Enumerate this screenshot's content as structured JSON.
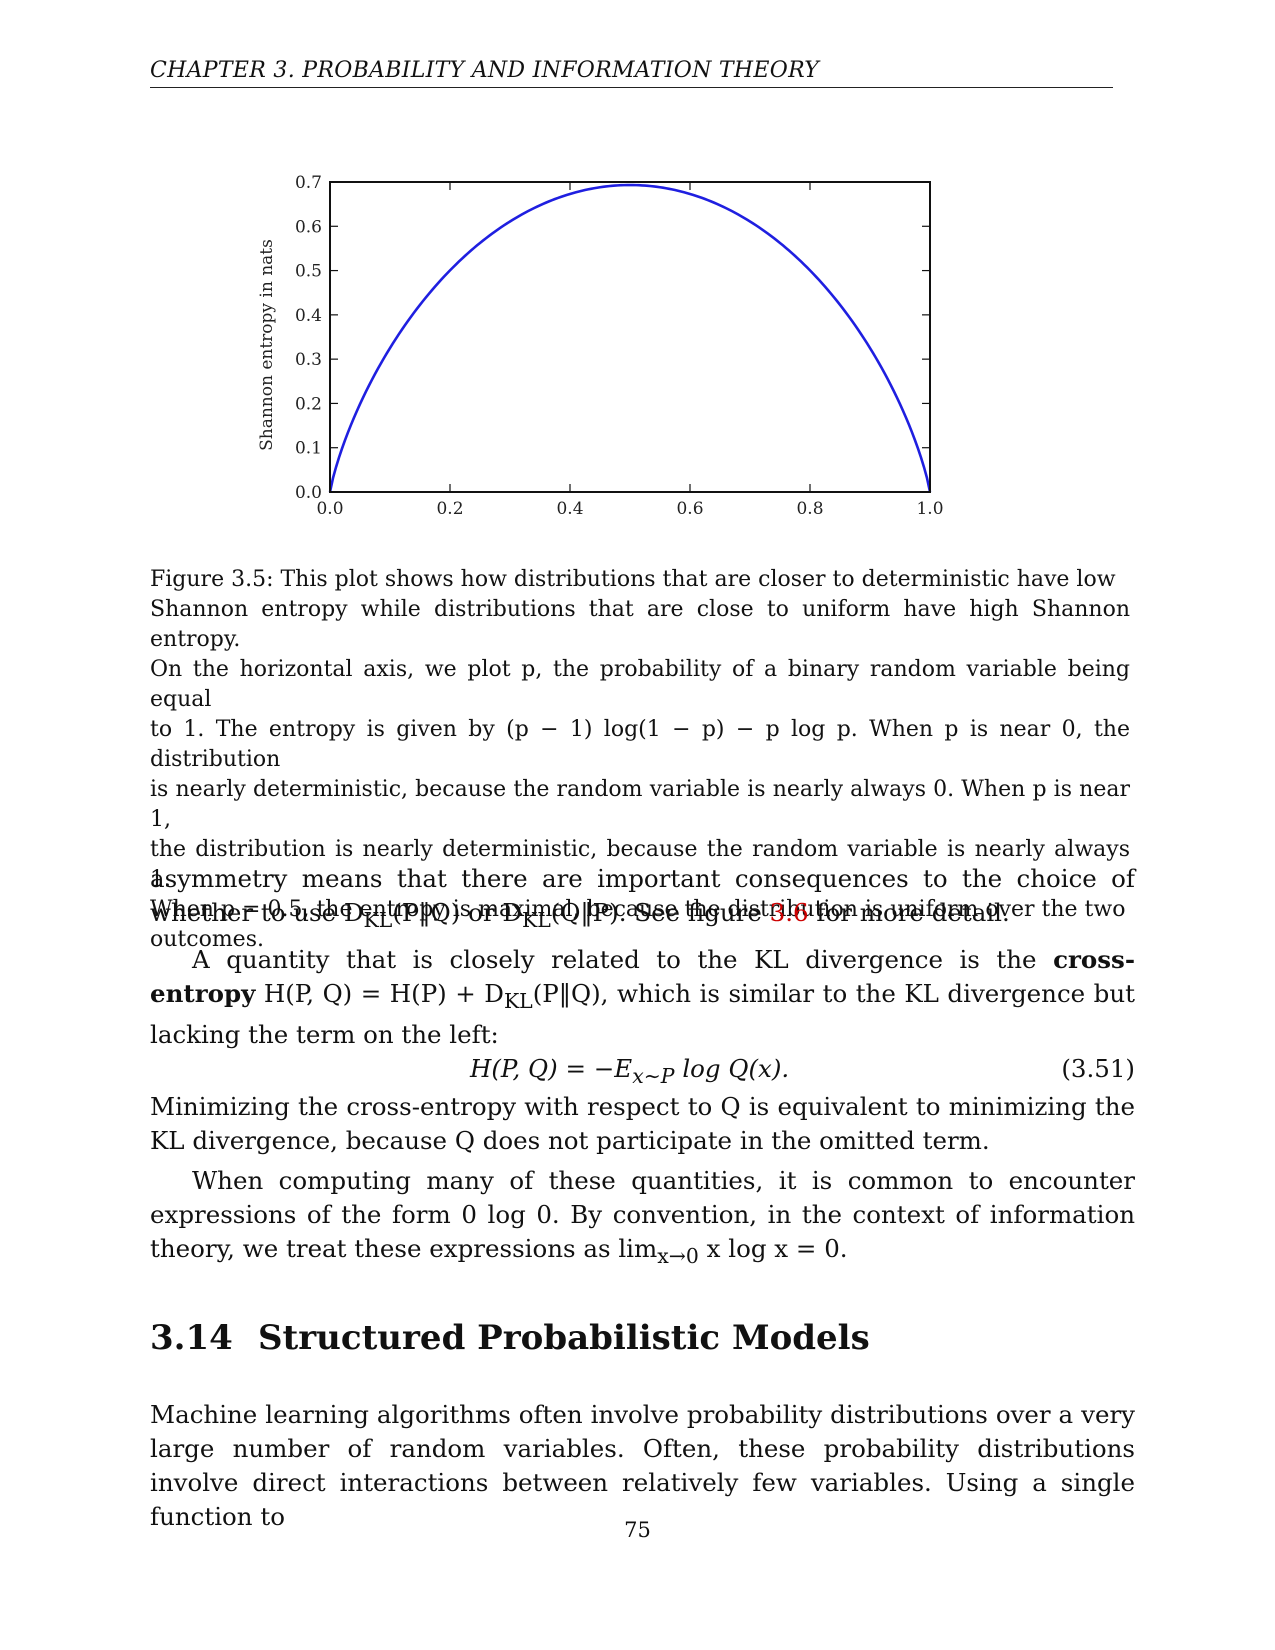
{
  "header": {
    "running_title": "CHAPTER 3.  PROBABILITY AND INFORMATION THEORY"
  },
  "chart_data": {
    "type": "line",
    "title": "",
    "xlabel": "",
    "ylabel": "Shannon entropy in nats",
    "xlim": [
      0.0,
      1.0
    ],
    "ylim": [
      0.0,
      0.7
    ],
    "x_ticks": [
      "0.0",
      "0.2",
      "0.4",
      "0.6",
      "0.8",
      "1.0"
    ],
    "y_ticks": [
      "0.0",
      "0.1",
      "0.2",
      "0.3",
      "0.4",
      "0.5",
      "0.6",
      "0.7"
    ],
    "grid": false,
    "series": [
      {
        "color": "#1f1fe0",
        "x": [
          0.0,
          0.02,
          0.05,
          0.1,
          0.15,
          0.2,
          0.25,
          0.3,
          0.35,
          0.4,
          0.45,
          0.5,
          0.55,
          0.6,
          0.65,
          0.7,
          0.75,
          0.8,
          0.85,
          0.9,
          0.95,
          0.98,
          1.0
        ],
        "y": [
          0.0,
          0.098,
          0.199,
          0.325,
          0.423,
          0.5,
          0.562,
          0.611,
          0.647,
          0.673,
          0.688,
          0.693,
          0.688,
          0.673,
          0.647,
          0.611,
          0.562,
          0.5,
          0.423,
          0.325,
          0.199,
          0.098,
          0.0
        ]
      }
    ]
  },
  "caption": {
    "l1": "Figure 3.5: This plot shows how distributions that are closer to deterministic have low",
    "l2": "Shannon entropy while distributions that are close to uniform have high Shannon entropy.",
    "l3": "On the horizontal axis, we plot p, the probability of a binary random variable being equal",
    "l4": "to 1. The entropy is given by (p − 1) log(1 − p) − p log p. When p is near 0, the distribution",
    "l5": "is nearly deterministic, because the random variable is nearly always 0. When p is near 1,",
    "l6": "the distribution is nearly deterministic, because the random variable is nearly always 1.",
    "l7": "When p = 0.5, the entropy is maximal, because the distribution is uniform over the two",
    "l8": "outcomes."
  },
  "body": {
    "p1_a": "asymmetry means that there are important consequences to the choice of whether to use D",
    "p1_sub1": "KL",
    "p1_b": "(P‖Q) or D",
    "p1_sub2": "KL",
    "p1_c": "(Q‖P). See figure ",
    "p1_ref": "3.6",
    "p1_d": " for more detail.",
    "p2_a": "A quantity that is closely related to the KL divergence is the ",
    "p2_bold": "cross-entropy",
    "p2_b": " H(P, Q) = H(P) + D",
    "p2_sub": "KL",
    "p2_c": "(P‖Q), which is similar to the KL divergence but lacking the term on the left:",
    "eq_a": "H(P, Q) = −E",
    "eq_sub": "x∼P",
    "eq_b": " log Q(x).",
    "eq_num": "(3.51)",
    "p3": "Minimizing the cross-entropy with respect to Q is equivalent to minimizing the KL divergence, because Q does not participate in the omitted term.",
    "p4_a": "When computing many of these quantities, it is common to encounter expressions of the form 0 log 0. By convention, in the context of information theory, we treat these expressions as lim",
    "p4_sub": "x→0",
    "p4_b": " x log x = 0."
  },
  "section": {
    "number": "3.14",
    "title": "Structured Probabilistic Models",
    "text": "Machine learning algorithms often involve probability distributions over a very large number of random variables. Often, these probability distributions involve direct interactions between relatively few variables. Using a single function to"
  },
  "page_number": "75"
}
